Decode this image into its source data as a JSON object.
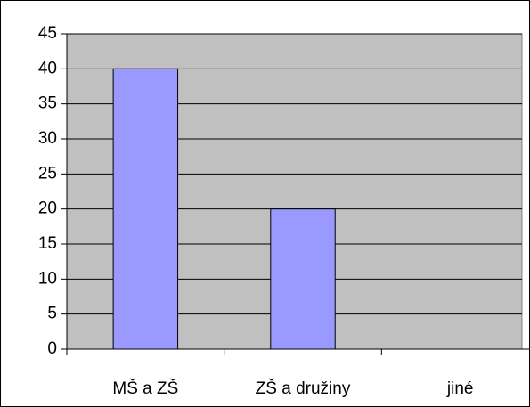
{
  "chart_data": {
    "type": "bar",
    "categories": [
      "MŠ a ZŠ",
      "ZŠ a družiny",
      "jiné"
    ],
    "values": [
      40,
      20,
      0
    ],
    "color": "#9999ff",
    "ylim": [
      0,
      45
    ],
    "yticks": [
      0,
      5,
      10,
      15,
      20,
      25,
      30,
      35,
      40,
      45
    ],
    "grid": true
  }
}
